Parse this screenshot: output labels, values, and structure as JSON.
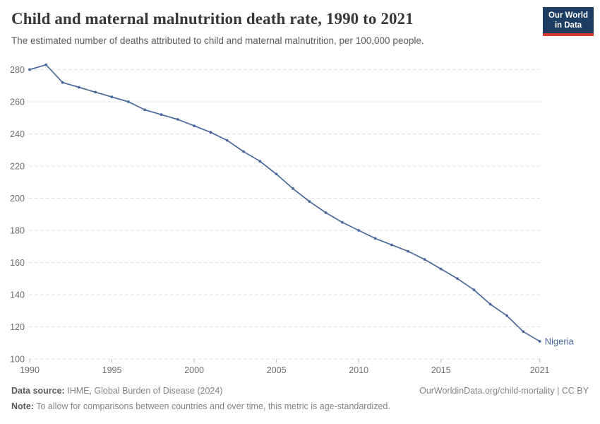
{
  "header": {
    "title": "Child and maternal malnutrition death rate, 1990 to 2021",
    "subtitle": "The estimated number of deaths attributed to child and maternal malnutrition, per 100,000 people.",
    "logo": {
      "line1": "Our World",
      "line2": "in Data"
    }
  },
  "chart_data": {
    "type": "line",
    "title": "Child and maternal malnutrition death rate, 1990 to 2021",
    "x": [
      1990,
      1991,
      1992,
      1993,
      1994,
      1995,
      1996,
      1997,
      1998,
      1999,
      2000,
      2001,
      2002,
      2003,
      2004,
      2005,
      2006,
      2007,
      2008,
      2009,
      2010,
      2011,
      2012,
      2013,
      2014,
      2015,
      2016,
      2017,
      2018,
      2019,
      2020,
      2021
    ],
    "series": [
      {
        "name": "Nigeria",
        "color": "#4b699c",
        "values": [
          280,
          283,
          272,
          269,
          266,
          263,
          260,
          255,
          252,
          249,
          245,
          241,
          236,
          229,
          223,
          215,
          206,
          198,
          191,
          185,
          180,
          175,
          171,
          167,
          162,
          156,
          150,
          143,
          134,
          127,
          117,
          111
        ]
      }
    ],
    "end_label": "Nigeria",
    "ylabel": "",
    "xlabel": "",
    "ylim": [
      100,
      285
    ],
    "xlim": [
      1990,
      2021
    ],
    "yticks": [
      100,
      120,
      140,
      160,
      180,
      200,
      220,
      240,
      260,
      280
    ],
    "xticks": [
      1990,
      1995,
      2000,
      2005,
      2010,
      2015,
      2021
    ],
    "grid": "horizontal-dashed",
    "legend_position": "end-of-line"
  },
  "footer": {
    "source_label": "Data source:",
    "source_text": "IHME, Global Burden of Disease (2024)",
    "credit": "OurWorldinData.org/child-mortality | CC BY",
    "note_label": "Note:",
    "note_text": "To allow for comparisons between countries and over time, this metric is age-standardized."
  },
  "colors": {
    "line": "#4b699c",
    "grid": "#dcdcdc",
    "axis_text": "#6e6e6e",
    "logo_bg": "#1d3d63",
    "logo_accent": "#d7382d"
  }
}
